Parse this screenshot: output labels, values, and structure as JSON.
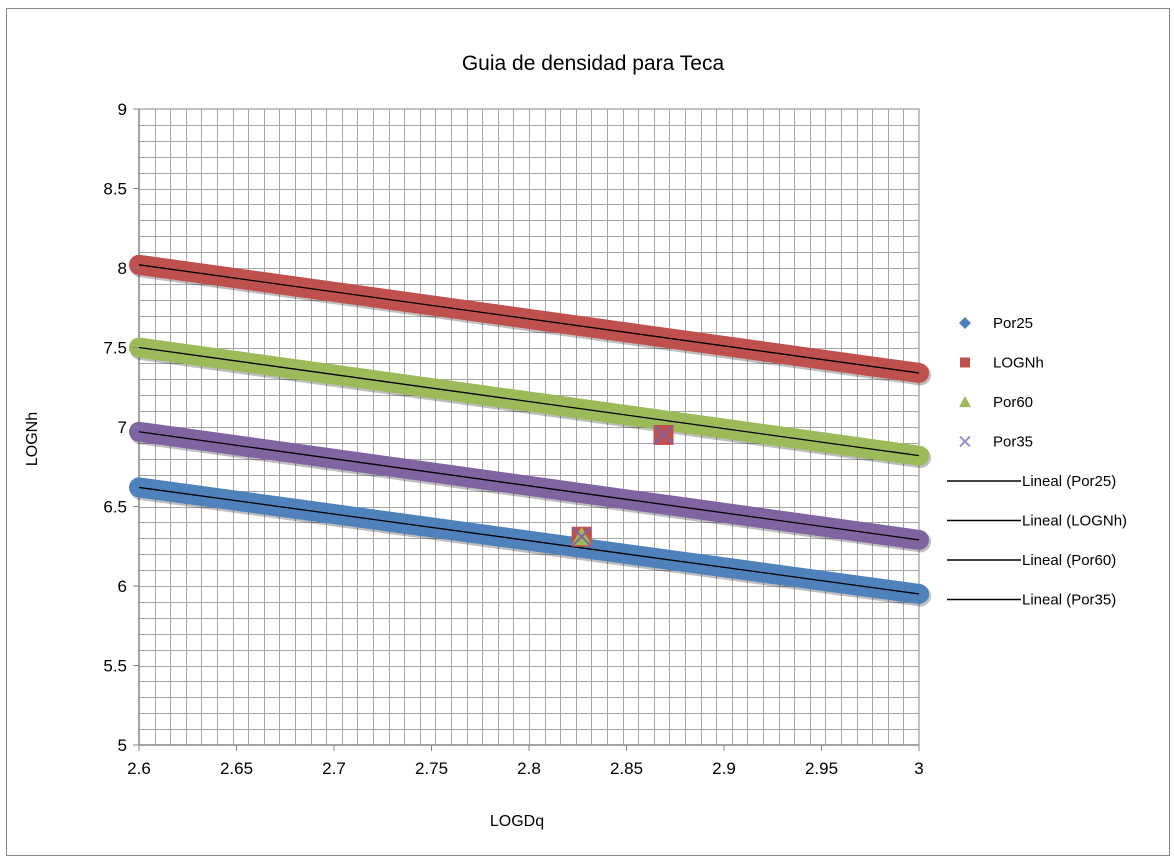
{
  "chart_data": {
    "type": "scatter",
    "title": "Guia de densidad para Teca",
    "xlabel": "LOGDq",
    "ylabel": "LOGNh",
    "xlim": [
      2.6,
      3.0
    ],
    "ylim": [
      5,
      9
    ],
    "x_ticks": [
      "2.6",
      "2.65",
      "2.7",
      "2.75",
      "2.8",
      "2.85",
      "2.9",
      "2.95",
      "3"
    ],
    "y_ticks": [
      "5",
      "5.5",
      "6",
      "6.5",
      "7",
      "7.5",
      "8",
      "8.5",
      "9"
    ],
    "x_tick_values": [
      2.6,
      2.65,
      2.7,
      2.75,
      2.8,
      2.85,
      2.9,
      2.95,
      3.0
    ],
    "y_tick_values": [
      5,
      5.5,
      6,
      6.5,
      7,
      7.5,
      8,
      8.5,
      9
    ],
    "grid": true,
    "legend_position": "right",
    "series": [
      {
        "name": "Por25",
        "marker": "diamond",
        "color": "#4f81bd",
        "line_from": [
          2.6,
          6.62
        ],
        "line_to": [
          3.0,
          5.95
        ]
      },
      {
        "name": "LOGNh",
        "marker": "square",
        "color": "#c0504d",
        "line_from": [
          2.6,
          8.02
        ],
        "line_to": [
          3.0,
          7.34
        ],
        "points": [
          [
            2.827,
            6.31
          ],
          [
            2.869,
            6.95
          ]
        ]
      },
      {
        "name": "Por60",
        "marker": "triangle",
        "color": "#9bbb59",
        "line_from": [
          2.6,
          7.5
        ],
        "line_to": [
          3.0,
          6.82
        ],
        "points": [
          [
            2.827,
            6.31
          ]
        ]
      },
      {
        "name": "Por35",
        "marker": "x",
        "color": "#8064a2",
        "line_from": [
          2.6,
          6.97
        ],
        "line_to": [
          3.0,
          6.29
        ],
        "points": [
          [
            2.869,
            6.95
          ],
          [
            2.827,
            6.31
          ]
        ]
      }
    ],
    "trendlines": [
      {
        "name": "Lineal (Por25)",
        "color": "#000000"
      },
      {
        "name": "Lineal (LOGNh)",
        "color": "#000000"
      },
      {
        "name": "Lineal (Por60)",
        "color": "#000000"
      },
      {
        "name": "Lineal (Por35)",
        "color": "#000000"
      }
    ],
    "legend_marker_colors": {
      "Por35": "#9c92c8"
    },
    "border_color": "#868686",
    "grid_color": "#a6a6a6"
  }
}
